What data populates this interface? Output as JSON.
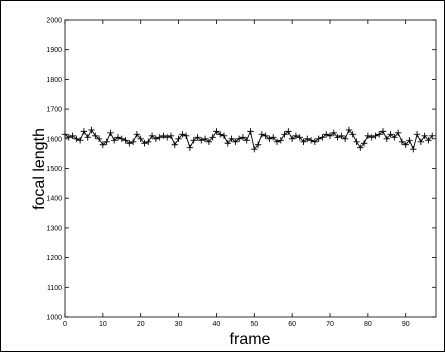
{
  "chart_data": {
    "type": "line",
    "title": "",
    "xlabel": "frame",
    "ylabel": "focal length",
    "xlim": [
      0,
      98
    ],
    "ylim": [
      1000,
      2000
    ],
    "xticks": [
      0,
      10,
      20,
      30,
      40,
      50,
      60,
      70,
      80,
      90
    ],
    "yticks": [
      1000,
      1100,
      1200,
      1300,
      1400,
      1500,
      1600,
      1700,
      1800,
      1900,
      2000
    ],
    "grid": false,
    "legend": "none",
    "marker": "plus",
    "line_color": "#000000",
    "series": [
      {
        "x": [
          0,
          1,
          2,
          3,
          4,
          5,
          6,
          7,
          8,
          9,
          10,
          11,
          12,
          13,
          14,
          15,
          16,
          17,
          18,
          19,
          20,
          21,
          22,
          23,
          24,
          25,
          26,
          27,
          28,
          29,
          30,
          31,
          32,
          33,
          34,
          35,
          36,
          37,
          38,
          39,
          40,
          41,
          42,
          43,
          44,
          45,
          46,
          47,
          48,
          49,
          50,
          51,
          52,
          53,
          54,
          55,
          56,
          57,
          58,
          59,
          60,
          61,
          62,
          63,
          64,
          65,
          66,
          67,
          68,
          69,
          70,
          71,
          72,
          73,
          74,
          75,
          76,
          77,
          78,
          79,
          80,
          81,
          82,
          83,
          84,
          85,
          86,
          87,
          88,
          89,
          90,
          91,
          92,
          93,
          94,
          95,
          96,
          97
        ],
        "y": [
          1615,
          1605,
          1610,
          1600,
          1595,
          1625,
          1605,
          1630,
          1610,
          1600,
          1580,
          1590,
          1620,
          1595,
          1605,
          1600,
          1595,
          1585,
          1590,
          1615,
          1600,
          1585,
          1590,
          1610,
          1600,
          1605,
          1610,
          1605,
          1610,
          1580,
          1600,
          1615,
          1610,
          1570,
          1595,
          1605,
          1595,
          1600,
          1590,
          1605,
          1625,
          1615,
          1610,
          1585,
          1600,
          1590,
          1600,
          1605,
          1595,
          1625,
          1565,
          1580,
          1615,
          1610,
          1600,
          1605,
          1590,
          1595,
          1615,
          1625,
          1600,
          1610,
          1605,
          1590,
          1600,
          1595,
          1590,
          1600,
          1605,
          1615,
          1610,
          1620,
          1605,
          1610,
          1600,
          1630,
          1615,
          1590,
          1570,
          1585,
          1610,
          1605,
          1610,
          1615,
          1625,
          1600,
          1615,
          1605,
          1620,
          1590,
          1580,
          1595,
          1565,
          1615,
          1590,
          1610,
          1595,
          1610
        ]
      }
    ]
  }
}
